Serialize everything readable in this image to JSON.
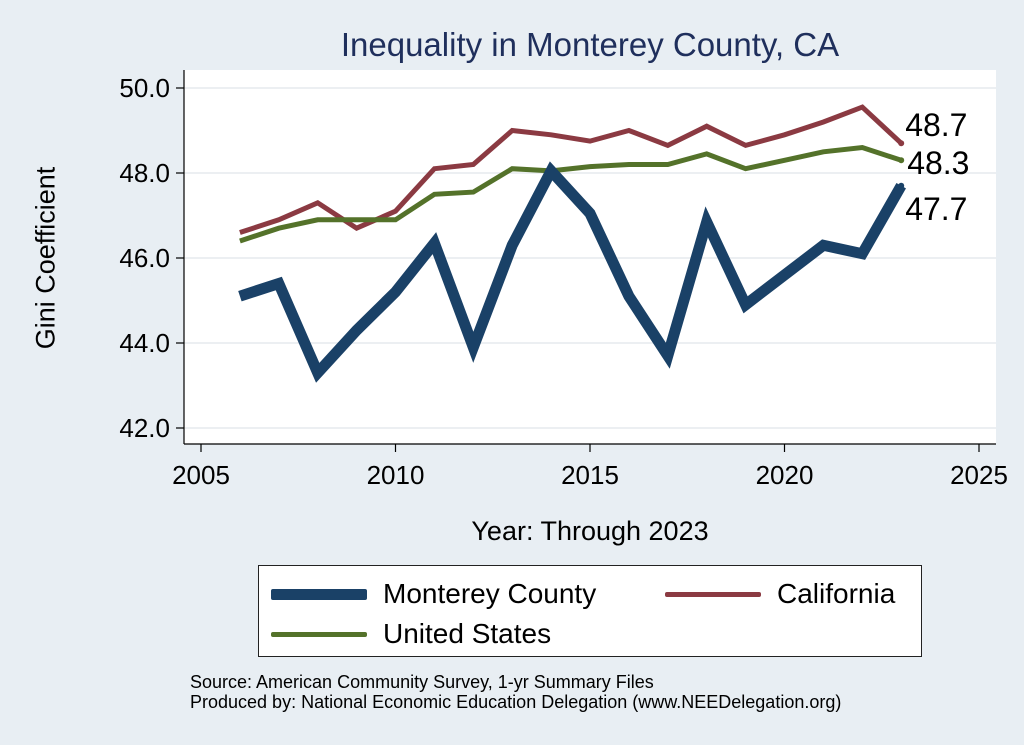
{
  "chart_data": {
    "type": "line",
    "title": "Inequality in Monterey County, CA",
    "xlabel": "Year: Through 2023",
    "ylabel": "Gini Coefficient",
    "xlim": [
      2005,
      2025
    ],
    "ylim": [
      42,
      50
    ],
    "xticks": [
      "2005",
      "2010",
      "2015",
      "2020",
      "2025"
    ],
    "yticks": [
      "42.0",
      "44.0",
      "46.0",
      "48.0",
      "50.0"
    ],
    "grid": true,
    "series": [
      {
        "name": "Monterey County",
        "color": "#1a4167",
        "end_label": "47.7",
        "x": [
          2006,
          2007,
          2008,
          2009,
          2010,
          2011,
          2012,
          2013,
          2014,
          2015,
          2016,
          2017,
          2018,
          2019,
          2020,
          2021,
          2022,
          2023
        ],
        "values": [
          45.1,
          45.4,
          43.3,
          44.3,
          45.2,
          46.35,
          43.9,
          46.3,
          48.05,
          47.05,
          45.1,
          43.7,
          46.85,
          44.9,
          45.6,
          46.3,
          46.1,
          47.7
        ]
      },
      {
        "name": "California",
        "color": "#8b3a42",
        "end_label": "48.7",
        "x": [
          2006,
          2007,
          2008,
          2009,
          2010,
          2011,
          2012,
          2013,
          2014,
          2015,
          2016,
          2017,
          2018,
          2019,
          2020,
          2021,
          2022,
          2023
        ],
        "values": [
          46.6,
          46.9,
          47.3,
          46.7,
          47.1,
          48.1,
          48.2,
          49.0,
          48.9,
          48.75,
          49.0,
          48.65,
          49.1,
          48.65,
          48.9,
          49.2,
          49.55,
          48.7
        ]
      },
      {
        "name": "United States",
        "color": "#54722a",
        "end_label": "48.3",
        "x": [
          2006,
          2007,
          2008,
          2009,
          2010,
          2011,
          2012,
          2013,
          2014,
          2015,
          2016,
          2017,
          2018,
          2019,
          2020,
          2021,
          2022,
          2023
        ],
        "values": [
          46.4,
          46.7,
          46.9,
          46.9,
          46.9,
          47.5,
          47.55,
          48.1,
          48.05,
          48.15,
          48.2,
          48.2,
          48.45,
          48.1,
          48.3,
          48.5,
          48.6,
          48.3
        ]
      }
    ],
    "legend": {
      "placement": "bottom",
      "items": [
        "Monterey County",
        "California",
        "United States"
      ]
    }
  },
  "footer": {
    "source": "Source: American Community Survey, 1-yr Summary Files",
    "produced_by": "Produced by: National Economic Education Delegation (www.NEEDelegation.org)"
  }
}
